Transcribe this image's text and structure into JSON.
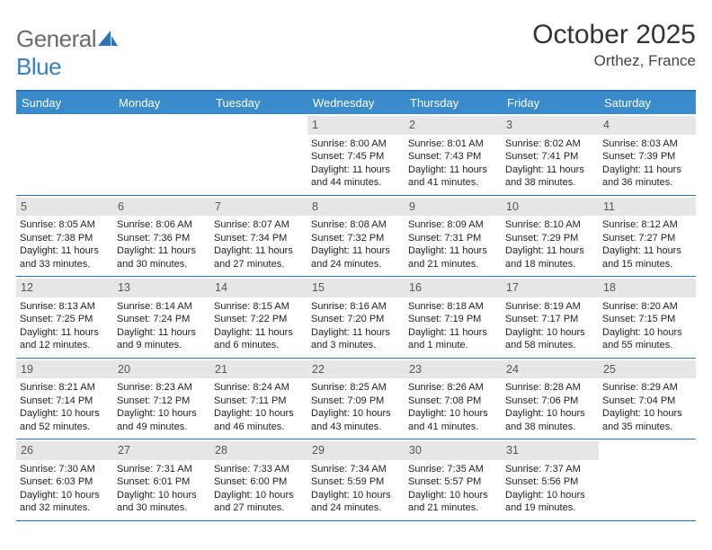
{
  "logo": {
    "part1": "General",
    "part2": "Blue",
    "part1_color": "#6b6b6b",
    "part2_color": "#3a7fc2",
    "shape_color": "#2d74b8"
  },
  "title": "October 2025",
  "location": "Orthez, France",
  "header_bg": "#3a8bc9",
  "header_text_color": "#ffffff",
  "divider_color": "#2d74b8",
  "daynum_bg": "#e6e6e6",
  "text_color": "#222222",
  "fontsize_title": 30,
  "fontsize_location": 17,
  "fontsize_dayheader": 13,
  "fontsize_cell": 11,
  "day_names": [
    "Sunday",
    "Monday",
    "Tuesday",
    "Wednesday",
    "Thursday",
    "Friday",
    "Saturday"
  ],
  "weeks": [
    [
      {
        "n": "",
        "empty": true,
        "lines": [
          "",
          "",
          "",
          ""
        ]
      },
      {
        "n": "",
        "empty": true,
        "lines": [
          "",
          "",
          "",
          ""
        ]
      },
      {
        "n": "",
        "empty": true,
        "lines": [
          "",
          "",
          "",
          ""
        ]
      },
      {
        "n": "1",
        "lines": [
          "Sunrise: 8:00 AM",
          "Sunset: 7:45 PM",
          "Daylight: 11 hours",
          "and 44 minutes."
        ]
      },
      {
        "n": "2",
        "lines": [
          "Sunrise: 8:01 AM",
          "Sunset: 7:43 PM",
          "Daylight: 11 hours",
          "and 41 minutes."
        ]
      },
      {
        "n": "3",
        "lines": [
          "Sunrise: 8:02 AM",
          "Sunset: 7:41 PM",
          "Daylight: 11 hours",
          "and 38 minutes."
        ]
      },
      {
        "n": "4",
        "lines": [
          "Sunrise: 8:03 AM",
          "Sunset: 7:39 PM",
          "Daylight: 11 hours",
          "and 36 minutes."
        ]
      }
    ],
    [
      {
        "n": "5",
        "lines": [
          "Sunrise: 8:05 AM",
          "Sunset: 7:38 PM",
          "Daylight: 11 hours",
          "and 33 minutes."
        ]
      },
      {
        "n": "6",
        "lines": [
          "Sunrise: 8:06 AM",
          "Sunset: 7:36 PM",
          "Daylight: 11 hours",
          "and 30 minutes."
        ]
      },
      {
        "n": "7",
        "lines": [
          "Sunrise: 8:07 AM",
          "Sunset: 7:34 PM",
          "Daylight: 11 hours",
          "and 27 minutes."
        ]
      },
      {
        "n": "8",
        "lines": [
          "Sunrise: 8:08 AM",
          "Sunset: 7:32 PM",
          "Daylight: 11 hours",
          "and 24 minutes."
        ]
      },
      {
        "n": "9",
        "lines": [
          "Sunrise: 8:09 AM",
          "Sunset: 7:31 PM",
          "Daylight: 11 hours",
          "and 21 minutes."
        ]
      },
      {
        "n": "10",
        "lines": [
          "Sunrise: 8:10 AM",
          "Sunset: 7:29 PM",
          "Daylight: 11 hours",
          "and 18 minutes."
        ]
      },
      {
        "n": "11",
        "lines": [
          "Sunrise: 8:12 AM",
          "Sunset: 7:27 PM",
          "Daylight: 11 hours",
          "and 15 minutes."
        ]
      }
    ],
    [
      {
        "n": "12",
        "lines": [
          "Sunrise: 8:13 AM",
          "Sunset: 7:25 PM",
          "Daylight: 11 hours",
          "and 12 minutes."
        ]
      },
      {
        "n": "13",
        "lines": [
          "Sunrise: 8:14 AM",
          "Sunset: 7:24 PM",
          "Daylight: 11 hours",
          "and 9 minutes."
        ]
      },
      {
        "n": "14",
        "lines": [
          "Sunrise: 8:15 AM",
          "Sunset: 7:22 PM",
          "Daylight: 11 hours",
          "and 6 minutes."
        ]
      },
      {
        "n": "15",
        "lines": [
          "Sunrise: 8:16 AM",
          "Sunset: 7:20 PM",
          "Daylight: 11 hours",
          "and 3 minutes."
        ]
      },
      {
        "n": "16",
        "lines": [
          "Sunrise: 8:18 AM",
          "Sunset: 7:19 PM",
          "Daylight: 11 hours",
          "and 1 minute."
        ]
      },
      {
        "n": "17",
        "lines": [
          "Sunrise: 8:19 AM",
          "Sunset: 7:17 PM",
          "Daylight: 10 hours",
          "and 58 minutes."
        ]
      },
      {
        "n": "18",
        "lines": [
          "Sunrise: 8:20 AM",
          "Sunset: 7:15 PM",
          "Daylight: 10 hours",
          "and 55 minutes."
        ]
      }
    ],
    [
      {
        "n": "19",
        "lines": [
          "Sunrise: 8:21 AM",
          "Sunset: 7:14 PM",
          "Daylight: 10 hours",
          "and 52 minutes."
        ]
      },
      {
        "n": "20",
        "lines": [
          "Sunrise: 8:23 AM",
          "Sunset: 7:12 PM",
          "Daylight: 10 hours",
          "and 49 minutes."
        ]
      },
      {
        "n": "21",
        "lines": [
          "Sunrise: 8:24 AM",
          "Sunset: 7:11 PM",
          "Daylight: 10 hours",
          "and 46 minutes."
        ]
      },
      {
        "n": "22",
        "lines": [
          "Sunrise: 8:25 AM",
          "Sunset: 7:09 PM",
          "Daylight: 10 hours",
          "and 43 minutes."
        ]
      },
      {
        "n": "23",
        "lines": [
          "Sunrise: 8:26 AM",
          "Sunset: 7:08 PM",
          "Daylight: 10 hours",
          "and 41 minutes."
        ]
      },
      {
        "n": "24",
        "lines": [
          "Sunrise: 8:28 AM",
          "Sunset: 7:06 PM",
          "Daylight: 10 hours",
          "and 38 minutes."
        ]
      },
      {
        "n": "25",
        "lines": [
          "Sunrise: 8:29 AM",
          "Sunset: 7:04 PM",
          "Daylight: 10 hours",
          "and 35 minutes."
        ]
      }
    ],
    [
      {
        "n": "26",
        "lines": [
          "Sunrise: 7:30 AM",
          "Sunset: 6:03 PM",
          "Daylight: 10 hours",
          "and 32 minutes."
        ]
      },
      {
        "n": "27",
        "lines": [
          "Sunrise: 7:31 AM",
          "Sunset: 6:01 PM",
          "Daylight: 10 hours",
          "and 30 minutes."
        ]
      },
      {
        "n": "28",
        "lines": [
          "Sunrise: 7:33 AM",
          "Sunset: 6:00 PM",
          "Daylight: 10 hours",
          "and 27 minutes."
        ]
      },
      {
        "n": "29",
        "lines": [
          "Sunrise: 7:34 AM",
          "Sunset: 5:59 PM",
          "Daylight: 10 hours",
          "and 24 minutes."
        ]
      },
      {
        "n": "30",
        "lines": [
          "Sunrise: 7:35 AM",
          "Sunset: 5:57 PM",
          "Daylight: 10 hours",
          "and 21 minutes."
        ]
      },
      {
        "n": "31",
        "lines": [
          "Sunrise: 7:37 AM",
          "Sunset: 5:56 PM",
          "Daylight: 10 hours",
          "and 19 minutes."
        ]
      },
      {
        "n": "",
        "empty": true,
        "lines": [
          "",
          "",
          "",
          ""
        ]
      }
    ]
  ]
}
